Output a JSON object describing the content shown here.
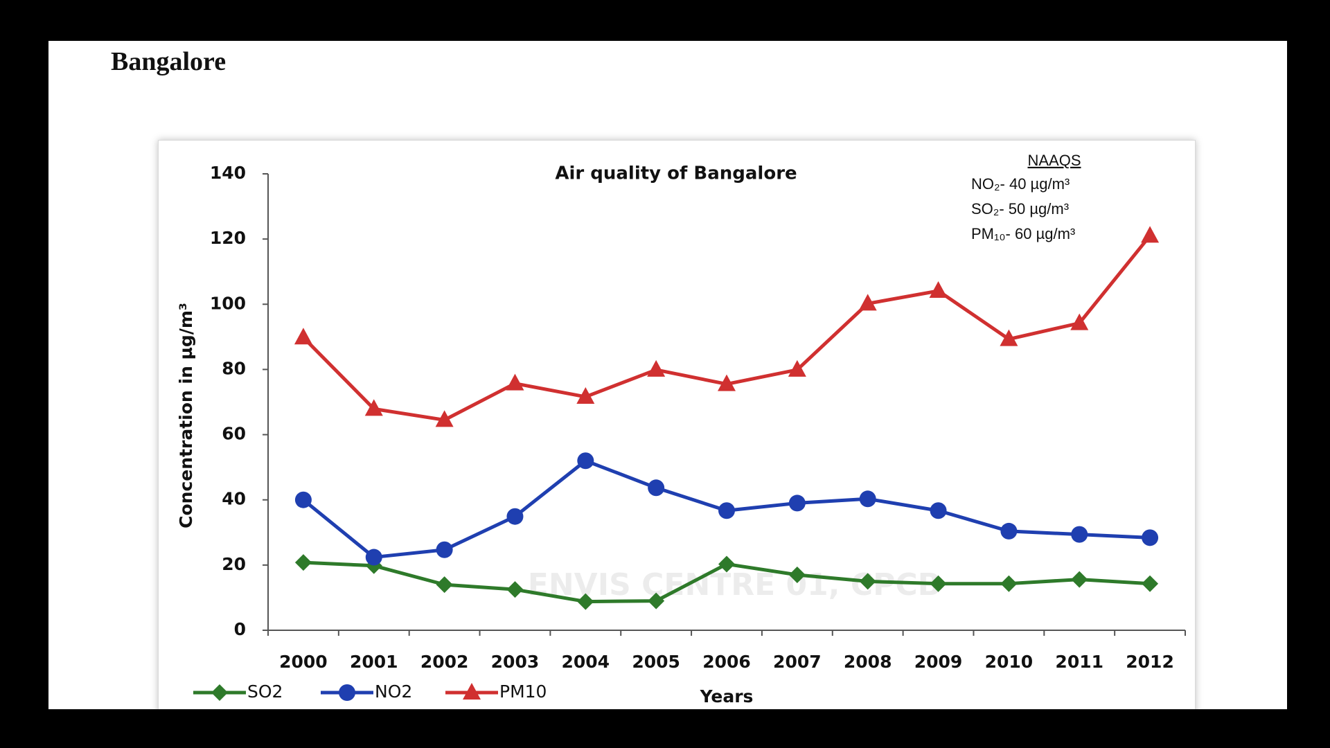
{
  "heading": "Bangalore",
  "chart_data": {
    "type": "line",
    "title": "Air quality of Bangalore",
    "xlabel": "Years",
    "ylabel": "Concentration in µg/m³",
    "watermark": "ENVIS CENTRE 01, CPCB",
    "annotation": {
      "title": "NAAQS",
      "lines": [
        "NO₂- 40 µg/m³",
        "SO₂- 50 µg/m³",
        "PM₁₀- 60 µg/m³"
      ]
    },
    "categories": [
      "2000",
      "2001",
      "2002",
      "2003",
      "2004",
      "2005",
      "2006",
      "2007",
      "2008",
      "2009",
      "2010",
      "2011",
      "2012"
    ],
    "ylim": [
      0,
      140
    ],
    "yticks": [
      0,
      20,
      40,
      60,
      80,
      100,
      120,
      140
    ],
    "grid": false,
    "legend": "bottom-left",
    "series": [
      {
        "name": "SO2",
        "color": "#2e7a2a",
        "marker": "diamond",
        "values": [
          20.8,
          19.8,
          14,
          12.5,
          8.8,
          9,
          20.3,
          17,
          15,
          14.3,
          14.3,
          15.6,
          14.3
        ]
      },
      {
        "name": "NO2",
        "color": "#1f3fb0",
        "marker": "circle",
        "values": [
          40,
          22.4,
          24.7,
          34.9,
          52,
          43.7,
          36.7,
          39,
          40.3,
          36.7,
          30.4,
          29.4,
          28.4
        ]
      },
      {
        "name": "PM10",
        "color": "#d03030",
        "marker": "triangle",
        "values": [
          89.8,
          67.9,
          64.5,
          75.7,
          71.6,
          79.9,
          75.5,
          79.9,
          100.2,
          104.1,
          89.3,
          94.2,
          121
        ]
      }
    ]
  }
}
